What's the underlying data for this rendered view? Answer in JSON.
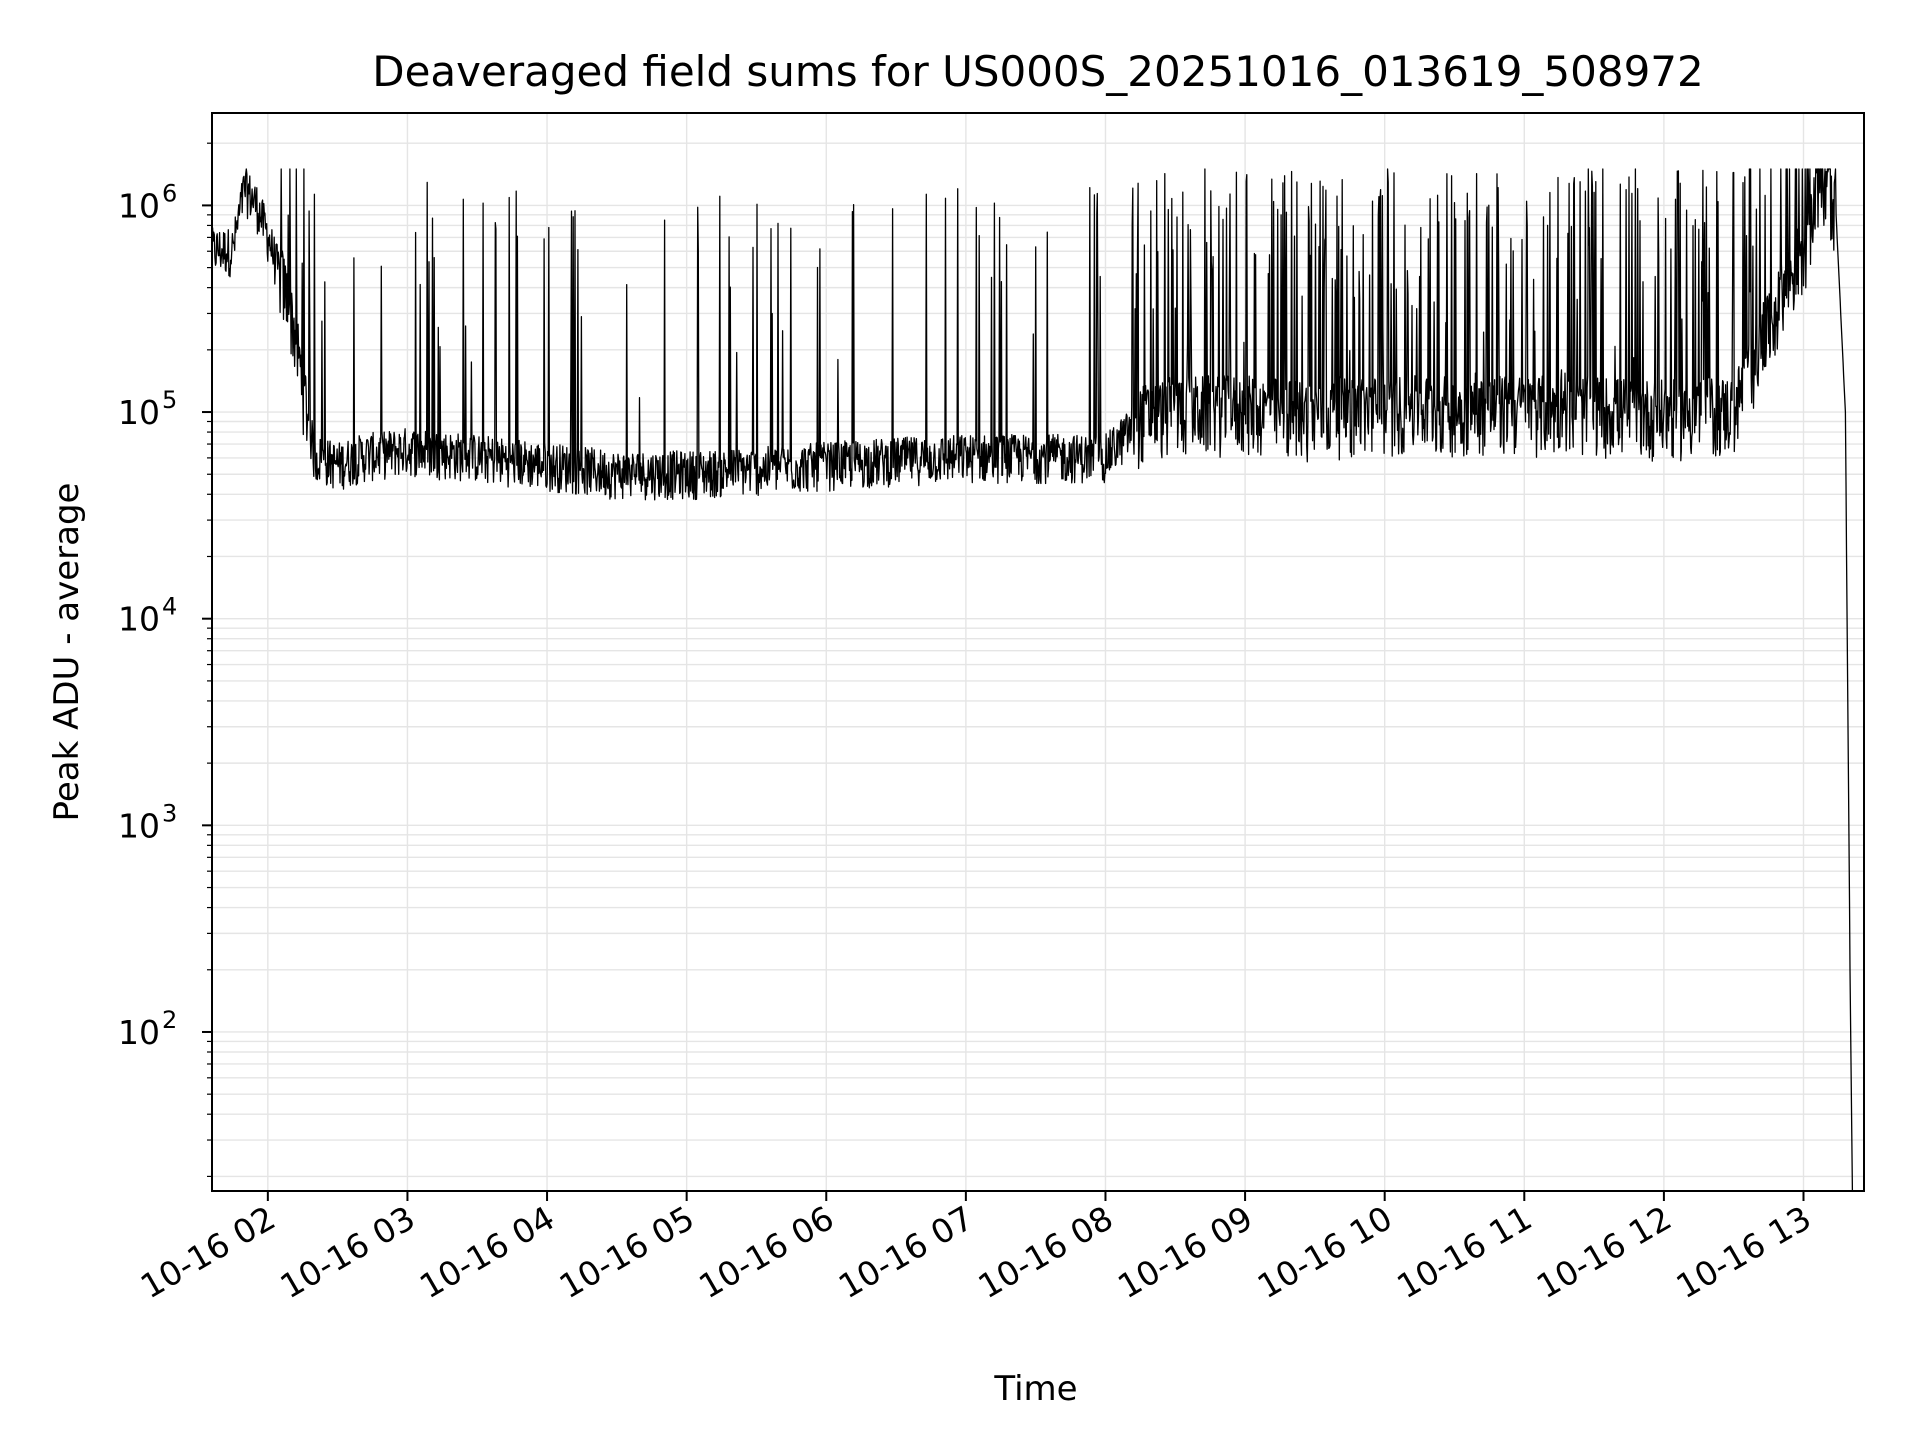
{
  "chart_data": {
    "type": "line",
    "title": "Deaveraged field sums for US000S_20251016_013619_508972",
    "xlabel": "Time",
    "ylabel": "Peak ADU - average",
    "y_scale": "log",
    "ylim": [
      17,
      2800000
    ],
    "xlim": [
      "2025-10-16 01:36",
      "2025-10-16 13:26"
    ],
    "grid": true,
    "line_color": "#000000",
    "x_tick_labels": [
      "10-16 02",
      "10-16 03",
      "10-16 04",
      "10-16 05",
      "10-16 06",
      "10-16 07",
      "10-16 08",
      "10-16 09",
      "10-16 10",
      "10-16 11",
      "10-16 12",
      "10-16 13"
    ],
    "y_ticks": [
      {
        "base": "10",
        "exp": "2"
      },
      {
        "base": "10",
        "exp": "3"
      },
      {
        "base": "10",
        "exp": "4"
      },
      {
        "base": "10",
        "exp": "5"
      },
      {
        "base": "10",
        "exp": "6"
      }
    ],
    "series": [
      {
        "x": [
          "2025-10-16 01:36",
          "2025-10-16 01:45",
          "2025-10-16 01:50",
          "2025-10-16 01:55",
          "2025-10-16 02:00",
          "2025-10-16 02:10",
          "2025-10-16 02:20",
          "2025-10-16 02:30",
          "2025-10-16 02:40",
          "2025-10-16 03:00",
          "2025-10-16 03:30",
          "2025-10-16 04:00",
          "2025-10-16 04:30",
          "2025-10-16 05:00",
          "2025-10-16 05:30",
          "2025-10-16 06:00",
          "2025-10-16 06:30",
          "2025-10-16 07:00",
          "2025-10-16 07:30",
          "2025-10-16 08:00",
          "2025-10-16 08:15",
          "2025-10-16 08:30",
          "2025-10-16 09:00",
          "2025-10-16 09:30",
          "2025-10-16 10:00",
          "2025-10-16 10:30",
          "2025-10-16 11:00",
          "2025-10-16 11:30",
          "2025-10-16 12:00",
          "2025-10-16 12:30",
          "2025-10-16 12:45",
          "2025-10-16 13:00",
          "2025-10-16 13:08",
          "2025-10-16 13:14",
          "2025-10-16 13:18",
          "2025-10-16 13:20",
          "2025-10-16 13:21"
        ],
        "y": [
          600000,
          600000,
          1200000,
          1000000,
          700000,
          300000,
          60000,
          55000,
          60000,
          65000,
          60000,
          55000,
          50000,
          50000,
          52000,
          55000,
          58000,
          60000,
          60000,
          60000,
          90000,
          100000,
          100000,
          95000,
          100000,
          100000,
          100000,
          100000,
          95000,
          100000,
          250000,
          600000,
          1300000,
          900000,
          100000,
          200,
          17
        ]
      }
    ]
  }
}
